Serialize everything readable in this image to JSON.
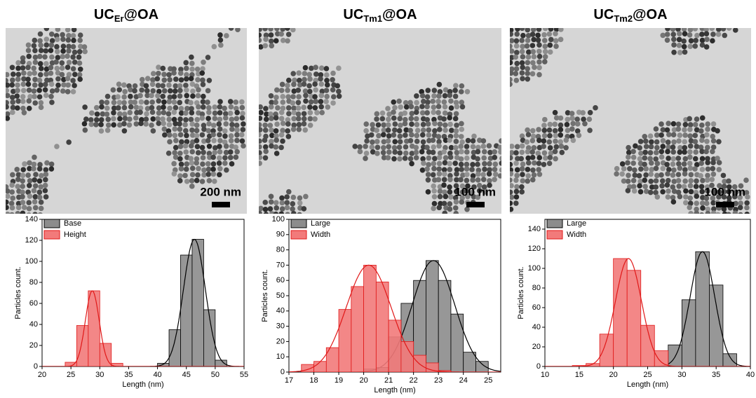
{
  "chart_data": [
    {
      "type": "histogram",
      "title_parts": [
        "UC",
        "Er",
        "@OA"
      ],
      "scale_bar": "200 nm",
      "xlabel": "Length (nm)",
      "ylabel": "Particles count.",
      "xlim": [
        20,
        55
      ],
      "xticks": [
        20,
        25,
        30,
        35,
        40,
        45,
        50,
        55
      ],
      "ylim": [
        0,
        140
      ],
      "yticks": [
        0,
        20,
        40,
        60,
        80,
        100,
        120,
        140
      ],
      "legend": "upper left",
      "series": [
        {
          "name": "Base",
          "color": "#8c8c8c",
          "line_color": "#000000",
          "bins": [
            40,
            42,
            44,
            46,
            48,
            50,
            52
          ],
          "values": [
            3,
            35,
            106,
            121,
            54,
            6
          ],
          "fit": {
            "mean": 46.4,
            "sd": 1.9,
            "peak": 121
          }
        },
        {
          "name": "Height",
          "color": "#f27a7a",
          "line_color": "#e01818",
          "bins": [
            24,
            26,
            28,
            30,
            32,
            34
          ],
          "values": [
            4,
            39,
            72,
            22,
            3
          ],
          "fit": {
            "mean": 28.7,
            "sd": 1.2,
            "peak": 72
          }
        }
      ]
    },
    {
      "type": "histogram",
      "title_parts": [
        "UC",
        "Tm1",
        "@OA"
      ],
      "scale_bar": "100 nm",
      "xlabel": "Length (nm)",
      "ylabel": "Particles count.",
      "xlim": [
        17,
        25.5
      ],
      "xticks": [
        17,
        18,
        19,
        20,
        21,
        22,
        23,
        24,
        25
      ],
      "ylim": [
        0,
        100
      ],
      "yticks": [
        0,
        10,
        20,
        30,
        40,
        50,
        60,
        70,
        80,
        90,
        100
      ],
      "legend": "upper left",
      "series": [
        {
          "name": "Large",
          "color": "#8c8c8c",
          "line_color": "#000000",
          "bins": [
            20,
            20.5,
            21,
            21.5,
            22,
            22.5,
            23,
            23.5,
            24,
            24.5,
            25
          ],
          "values": [
            2,
            3,
            23,
            45,
            60,
            73,
            60,
            38,
            13,
            7
          ],
          "fit": {
            "mean": 22.8,
            "sd": 0.85,
            "peak": 73
          }
        },
        {
          "name": "Width",
          "color": "#f27a7a",
          "line_color": "#e01818",
          "bins": [
            17.5,
            18,
            18.5,
            19,
            19.5,
            20,
            20.5,
            21,
            21.5,
            22,
            22.5,
            23,
            23.5
          ],
          "values": [
            5,
            7,
            16,
            41,
            56,
            70,
            59,
            34,
            20,
            11,
            6,
            1
          ],
          "fit": {
            "mean": 20.2,
            "sd": 0.9,
            "peak": 70
          }
        }
      ]
    },
    {
      "type": "histogram",
      "title_parts": [
        "UC",
        "Tm2",
        "@OA"
      ],
      "scale_bar": "100 nm",
      "xlabel": "Length (nm)",
      "ylabel": "Particles count.",
      "xlim": [
        10,
        40
      ],
      "xticks": [
        10,
        15,
        20,
        25,
        30,
        35,
        40
      ],
      "ylim": [
        0,
        150
      ],
      "yticks": [
        0,
        20,
        40,
        60,
        80,
        100,
        120,
        140
      ],
      "legend": "upper left",
      "series": [
        {
          "name": "Large",
          "color": "#8c8c8c",
          "line_color": "#000000",
          "bins": [
            28,
            30,
            32,
            34,
            36,
            38
          ],
          "values": [
            22,
            68,
            117,
            83,
            13
          ],
          "fit": {
            "mean": 33,
            "sd": 1.8,
            "peak": 117
          }
        },
        {
          "name": "Width",
          "color": "#f27a7a",
          "line_color": "#e01818",
          "bins": [
            14,
            16,
            18,
            20,
            22,
            24,
            26,
            28
          ],
          "values": [
            1,
            3,
            33,
            110,
            98,
            42,
            16
          ],
          "fit": {
            "mean": 22.2,
            "sd": 1.9,
            "peak": 110
          }
        }
      ]
    }
  ]
}
